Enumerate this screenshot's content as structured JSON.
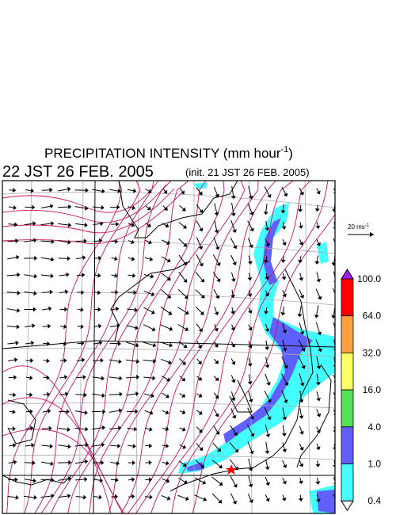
{
  "header": {
    "title": {
      "main": "PRECIPITATION INTENSITY (mm hour",
      "superscript": "-1",
      "close": ")"
    },
    "valid_time": "22 JST 26 FEB. 2005",
    "init_time": "(init. 21 JST 26 FEB. 2005)"
  },
  "wind_scale": {
    "label": "20 ms",
    "superscript": "-1"
  },
  "colorbar": {
    "levels": [
      "100.0",
      "64.0",
      "32.0",
      "16.0",
      "4.0",
      "1.0",
      "0.4"
    ],
    "colors": [
      "#a020f0",
      "#ff0000",
      "#ffa040",
      "#ffff66",
      "#55e055",
      "#6060ff",
      "#44ffff",
      "#ffffff"
    ]
  }
}
